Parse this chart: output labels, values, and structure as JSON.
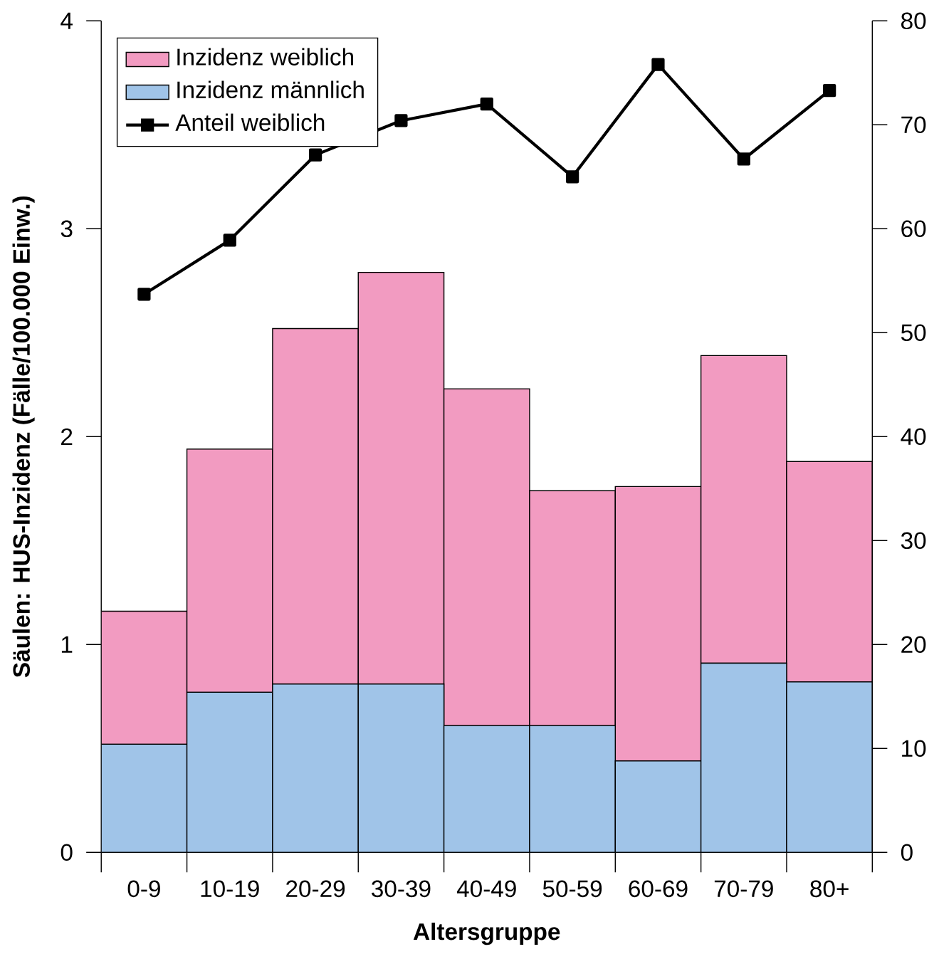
{
  "chart_data": {
    "type": "bar",
    "stacked": true,
    "xlabel": "Altersgruppe",
    "ylabel": "Säulen: HUS-Inzidenz (Fälle/100.000 Einw.)",
    "categories": [
      "0-9",
      "10-19",
      "20-29",
      "30-39",
      "40-49",
      "50-59",
      "60-69",
      "70-79",
      "80+"
    ],
    "series": [
      {
        "name": "Inzidenz männlich",
        "color": "#a0c4e8",
        "values": [
          0.52,
          0.77,
          0.81,
          0.81,
          0.61,
          0.61,
          0.44,
          0.91,
          0.82
        ]
      },
      {
        "name": "Inzidenz weiblich",
        "color": "#f29bc1",
        "values": [
          0.64,
          1.17,
          1.71,
          1.98,
          1.62,
          1.13,
          1.32,
          1.48,
          1.06
        ]
      },
      {
        "name": "Anteil weiblich",
        "type": "line",
        "axis": "y2",
        "color": "#000000",
        "values": [
          53.7,
          58.9,
          67.1,
          70.4,
          72.0,
          65.0,
          75.8,
          66.7,
          73.3
        ]
      }
    ],
    "ylim": [
      0,
      4
    ],
    "yticks": [
      0,
      1,
      2,
      3,
      4
    ],
    "y2lim": [
      0,
      80
    ],
    "y2ticks": [
      0,
      10,
      20,
      30,
      40,
      50,
      60,
      70,
      80
    ],
    "legend": "top left",
    "marker": "square",
    "grid": false
  }
}
